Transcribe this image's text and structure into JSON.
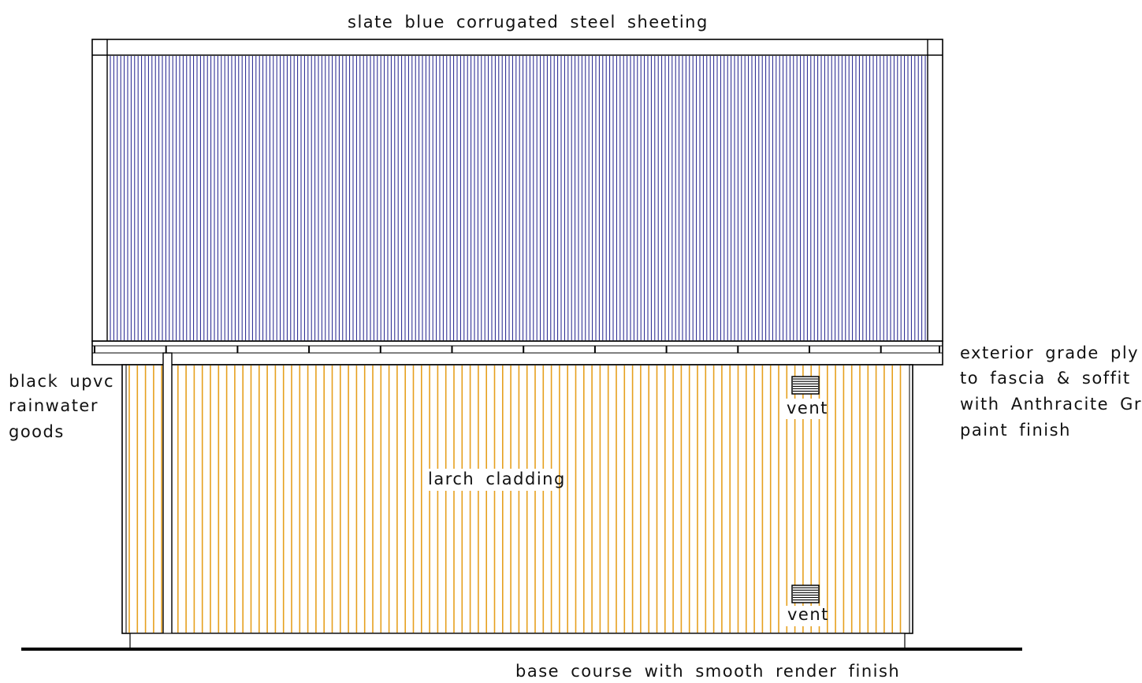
{
  "labels": {
    "roof": "slate blue corrugated steel sheeting",
    "fascia": [
      "exterior grade ply",
      "to fascia & soffit",
      "with Anthracite Grey",
      "paint finish"
    ],
    "rainwater": [
      "black upvc",
      "rainwater",
      "goods"
    ],
    "cladding": "larch cladding",
    "vent_upper": "vent",
    "vent_lower": "vent",
    "base": "base course with smooth render finish"
  },
  "colors": {
    "roof_sheeting": "#1e1e8c",
    "larch_cladding": "#e6a01e",
    "linework": "#000000"
  }
}
